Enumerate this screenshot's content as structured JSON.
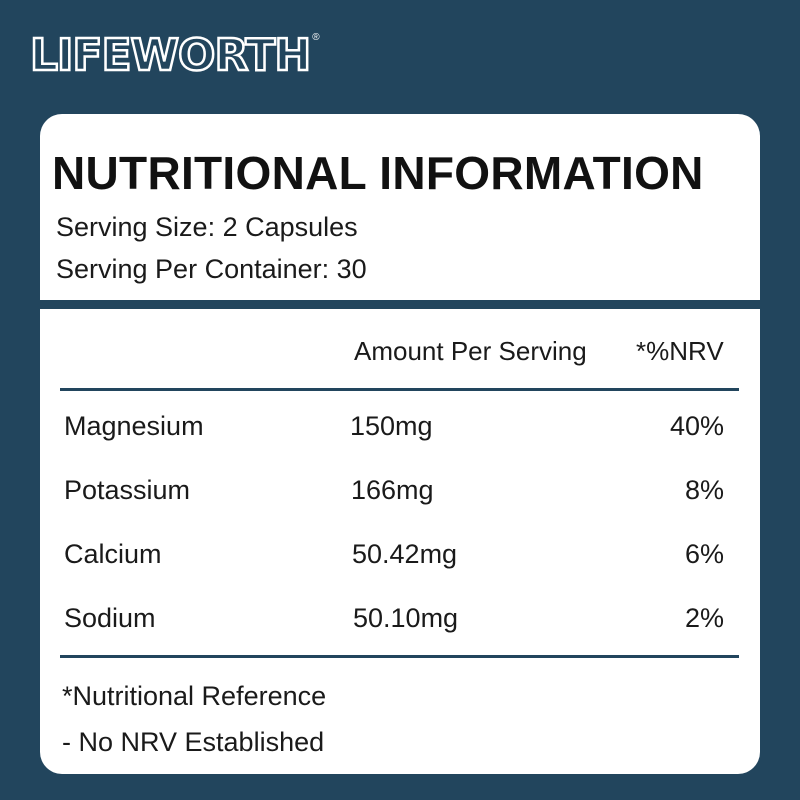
{
  "brand": {
    "name": "LIFEWORTH",
    "registered": "®"
  },
  "panel": {
    "title": "NUTRITIONAL INFORMATION",
    "serving_size": "Serving Size: 2 Capsules",
    "servings_per_container": "Serving Per Container: 30",
    "columns": {
      "amount": "Amount Per Serving",
      "nrv": "*%NRV"
    },
    "rows": [
      {
        "nutrient": "Magnesium",
        "amount": "150mg",
        "nrv": "40%"
      },
      {
        "nutrient": "Potassium",
        "amount": "166mg",
        "nrv": "8%"
      },
      {
        "nutrient": "Calcium",
        "amount": "50.42mg",
        "nrv": "6%"
      },
      {
        "nutrient": "Sodium",
        "amount": "50.10mg",
        "nrv": "2%"
      }
    ],
    "footnotes": {
      "reference": "*Nutritional Reference",
      "no_nrv": "- No NRV Established"
    }
  },
  "colors": {
    "background": "#22455d",
    "card": "#ffffff",
    "accent": "#22455d",
    "text": "#1a1a1a"
  }
}
